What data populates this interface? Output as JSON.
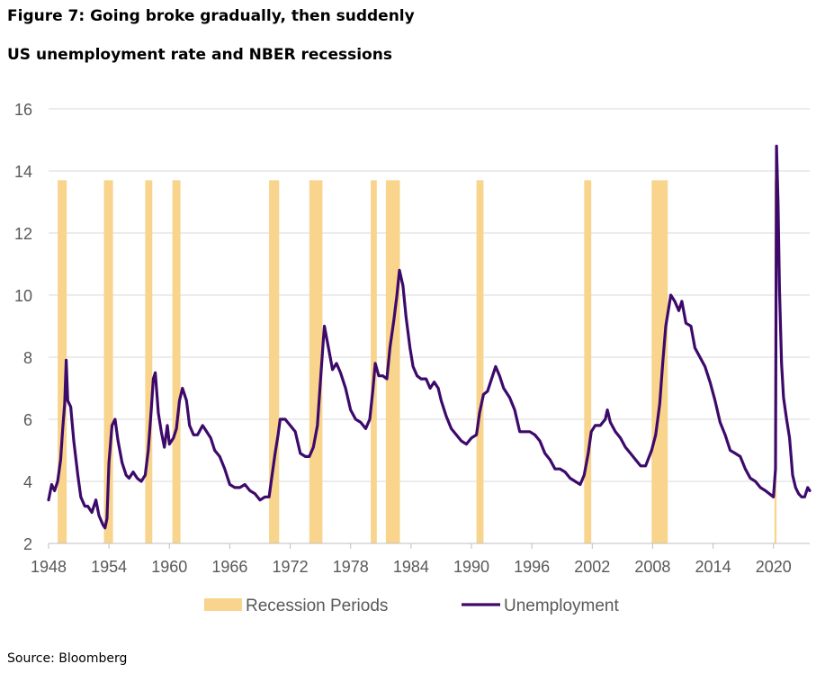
{
  "figure_title": "Figure 7: Going broke gradually, then suddenly",
  "source": "Source: Bloomberg",
  "chart_data": {
    "type": "line",
    "title": "US unemployment rate and NBER recessions",
    "xlabel": "",
    "ylabel": "",
    "xlim": [
      1948,
      2023.6
    ],
    "ylim": [
      2,
      16
    ],
    "y_ticks": [
      2,
      4,
      6,
      8,
      10,
      12,
      14,
      16
    ],
    "x_ticks": [
      1948,
      1954,
      1960,
      1966,
      1972,
      1978,
      1984,
      1990,
      1996,
      2002,
      2008,
      2014,
      2020
    ],
    "grid": "horizontal",
    "legend_position": "bottom",
    "colors": {
      "recession": "#F8D48C",
      "unemployment": "#3D0A6B",
      "grid": "#D9D9D9",
      "axis": "#BFBFBF"
    },
    "series": [
      {
        "name": "Recession Periods",
        "type": "bar",
        "value": 13.7,
        "ranges": [
          [
            1948.9,
            1949.8
          ],
          [
            1953.5,
            1954.4
          ],
          [
            1957.6,
            1958.3
          ],
          [
            1960.3,
            1961.1
          ],
          [
            1969.9,
            1970.9
          ],
          [
            1973.9,
            1975.2
          ],
          [
            1980.0,
            1980.6
          ],
          [
            1981.5,
            1982.9
          ],
          [
            1990.5,
            1991.2
          ],
          [
            2001.2,
            2001.9
          ],
          [
            2007.9,
            2009.5
          ],
          [
            2020.1,
            2020.3
          ]
        ]
      },
      {
        "name": "Unemployment",
        "type": "line",
        "points": [
          [
            1948.0,
            3.4
          ],
          [
            1948.3,
            3.9
          ],
          [
            1948.6,
            3.7
          ],
          [
            1948.9,
            4.0
          ],
          [
            1949.2,
            4.7
          ],
          [
            1949.4,
            5.7
          ],
          [
            1949.6,
            6.5
          ],
          [
            1949.75,
            7.9
          ],
          [
            1949.9,
            6.6
          ],
          [
            1950.2,
            6.4
          ],
          [
            1950.5,
            5.3
          ],
          [
            1950.9,
            4.2
          ],
          [
            1951.2,
            3.5
          ],
          [
            1951.6,
            3.2
          ],
          [
            1951.9,
            3.2
          ],
          [
            1952.3,
            3.0
          ],
          [
            1952.7,
            3.4
          ],
          [
            1953.0,
            2.9
          ],
          [
            1953.4,
            2.6
          ],
          [
            1953.6,
            2.5
          ],
          [
            1953.8,
            2.8
          ],
          [
            1954.0,
            4.6
          ],
          [
            1954.3,
            5.8
          ],
          [
            1954.6,
            6.0
          ],
          [
            1954.9,
            5.3
          ],
          [
            1955.3,
            4.6
          ],
          [
            1955.7,
            4.2
          ],
          [
            1956.0,
            4.1
          ],
          [
            1956.4,
            4.3
          ],
          [
            1956.8,
            4.1
          ],
          [
            1957.2,
            4.0
          ],
          [
            1957.6,
            4.2
          ],
          [
            1957.9,
            5.0
          ],
          [
            1958.2,
            6.3
          ],
          [
            1958.4,
            7.3
          ],
          [
            1958.6,
            7.5
          ],
          [
            1958.9,
            6.2
          ],
          [
            1959.2,
            5.6
          ],
          [
            1959.5,
            5.1
          ],
          [
            1959.8,
            5.8
          ],
          [
            1960.0,
            5.2
          ],
          [
            1960.4,
            5.4
          ],
          [
            1960.7,
            5.7
          ],
          [
            1961.0,
            6.6
          ],
          [
            1961.3,
            7.0
          ],
          [
            1961.7,
            6.6
          ],
          [
            1962.0,
            5.8
          ],
          [
            1962.4,
            5.5
          ],
          [
            1962.8,
            5.5
          ],
          [
            1963.3,
            5.8
          ],
          [
            1963.7,
            5.6
          ],
          [
            1964.1,
            5.4
          ],
          [
            1964.5,
            5.0
          ],
          [
            1965.0,
            4.8
          ],
          [
            1965.5,
            4.4
          ],
          [
            1966.0,
            3.9
          ],
          [
            1966.5,
            3.8
          ],
          [
            1967.0,
            3.8
          ],
          [
            1967.5,
            3.9
          ],
          [
            1968.0,
            3.7
          ],
          [
            1968.5,
            3.6
          ],
          [
            1969.0,
            3.4
          ],
          [
            1969.5,
            3.5
          ],
          [
            1969.9,
            3.5
          ],
          [
            1970.2,
            4.2
          ],
          [
            1970.5,
            4.9
          ],
          [
            1970.8,
            5.5
          ],
          [
            1971.0,
            6.0
          ],
          [
            1971.5,
            6.0
          ],
          [
            1972.0,
            5.8
          ],
          [
            1972.5,
            5.6
          ],
          [
            1973.0,
            4.9
          ],
          [
            1973.5,
            4.8
          ],
          [
            1973.9,
            4.8
          ],
          [
            1974.3,
            5.1
          ],
          [
            1974.7,
            5.8
          ],
          [
            1975.0,
            7.2
          ],
          [
            1975.3,
            8.6
          ],
          [
            1975.4,
            9.0
          ],
          [
            1975.8,
            8.3
          ],
          [
            1976.2,
            7.6
          ],
          [
            1976.6,
            7.8
          ],
          [
            1977.0,
            7.5
          ],
          [
            1977.5,
            7.0
          ],
          [
            1978.0,
            6.3
          ],
          [
            1978.5,
            6.0
          ],
          [
            1979.0,
            5.9
          ],
          [
            1979.5,
            5.7
          ],
          [
            1979.9,
            6.0
          ],
          [
            1980.2,
            6.9
          ],
          [
            1980.45,
            7.8
          ],
          [
            1980.8,
            7.4
          ],
          [
            1981.2,
            7.4
          ],
          [
            1981.6,
            7.3
          ],
          [
            1981.9,
            8.3
          ],
          [
            1982.3,
            9.2
          ],
          [
            1982.6,
            10.0
          ],
          [
            1982.85,
            10.8
          ],
          [
            1983.2,
            10.3
          ],
          [
            1983.5,
            9.3
          ],
          [
            1983.9,
            8.3
          ],
          [
            1984.2,
            7.7
          ],
          [
            1984.6,
            7.4
          ],
          [
            1985.0,
            7.3
          ],
          [
            1985.5,
            7.3
          ],
          [
            1985.9,
            7.0
          ],
          [
            1986.3,
            7.2
          ],
          [
            1986.7,
            7.0
          ],
          [
            1987.0,
            6.6
          ],
          [
            1987.5,
            6.1
          ],
          [
            1988.0,
            5.7
          ],
          [
            1988.5,
            5.5
          ],
          [
            1989.0,
            5.3
          ],
          [
            1989.5,
            5.2
          ],
          [
            1990.0,
            5.4
          ],
          [
            1990.5,
            5.5
          ],
          [
            1990.8,
            6.2
          ],
          [
            1991.2,
            6.8
          ],
          [
            1991.6,
            6.9
          ],
          [
            1992.0,
            7.3
          ],
          [
            1992.4,
            7.7
          ],
          [
            1992.8,
            7.4
          ],
          [
            1993.2,
            7.0
          ],
          [
            1993.8,
            6.7
          ],
          [
            1994.3,
            6.3
          ],
          [
            1994.8,
            5.6
          ],
          [
            1995.3,
            5.6
          ],
          [
            1995.8,
            5.6
          ],
          [
            1996.3,
            5.5
          ],
          [
            1996.8,
            5.3
          ],
          [
            1997.3,
            4.9
          ],
          [
            1997.8,
            4.7
          ],
          [
            1998.3,
            4.4
          ],
          [
            1998.8,
            4.4
          ],
          [
            1999.3,
            4.3
          ],
          [
            1999.8,
            4.1
          ],
          [
            2000.3,
            4.0
          ],
          [
            2000.8,
            3.9
          ],
          [
            2001.2,
            4.2
          ],
          [
            2001.6,
            4.9
          ],
          [
            2001.9,
            5.6
          ],
          [
            2002.3,
            5.8
          ],
          [
            2002.8,
            5.8
          ],
          [
            2003.3,
            6.0
          ],
          [
            2003.5,
            6.3
          ],
          [
            2003.8,
            5.9
          ],
          [
            2004.3,
            5.6
          ],
          [
            2004.8,
            5.4
          ],
          [
            2005.3,
            5.1
          ],
          [
            2005.8,
            4.9
          ],
          [
            2006.3,
            4.7
          ],
          [
            2006.8,
            4.5
          ],
          [
            2007.3,
            4.5
          ],
          [
            2007.9,
            5.0
          ],
          [
            2008.3,
            5.5
          ],
          [
            2008.7,
            6.5
          ],
          [
            2009.0,
            7.8
          ],
          [
            2009.3,
            9.0
          ],
          [
            2009.8,
            10.0
          ],
          [
            2010.2,
            9.8
          ],
          [
            2010.6,
            9.5
          ],
          [
            2010.9,
            9.8
          ],
          [
            2011.3,
            9.1
          ],
          [
            2011.8,
            9.0
          ],
          [
            2012.2,
            8.3
          ],
          [
            2012.7,
            8.0
          ],
          [
            2013.2,
            7.7
          ],
          [
            2013.7,
            7.2
          ],
          [
            2014.2,
            6.6
          ],
          [
            2014.7,
            5.9
          ],
          [
            2015.2,
            5.5
          ],
          [
            2015.7,
            5.0
          ],
          [
            2016.2,
            4.9
          ],
          [
            2016.7,
            4.8
          ],
          [
            2017.2,
            4.4
          ],
          [
            2017.7,
            4.1
          ],
          [
            2018.2,
            4.0
          ],
          [
            2018.7,
            3.8
          ],
          [
            2019.2,
            3.7
          ],
          [
            2019.6,
            3.6
          ],
          [
            2020.0,
            3.5
          ],
          [
            2020.2,
            4.4
          ],
          [
            2020.3,
            14.8
          ],
          [
            2020.45,
            13.0
          ],
          [
            2020.6,
            10.2
          ],
          [
            2020.8,
            7.8
          ],
          [
            2021.0,
            6.7
          ],
          [
            2021.3,
            6.0
          ],
          [
            2021.6,
            5.4
          ],
          [
            2021.9,
            4.2
          ],
          [
            2022.2,
            3.8
          ],
          [
            2022.5,
            3.6
          ],
          [
            2022.8,
            3.5
          ],
          [
            2023.1,
            3.5
          ],
          [
            2023.4,
            3.8
          ],
          [
            2023.6,
            3.7
          ]
        ]
      }
    ]
  }
}
